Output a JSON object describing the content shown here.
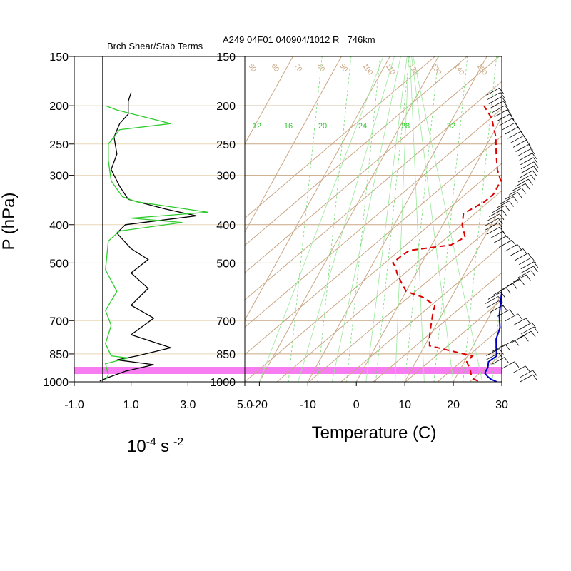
{
  "chart_data": [
    {
      "type": "line",
      "title": "Brch Shear/Stab Terms",
      "xlabel": "10^-4 s^-2",
      "xlabel_base": "10",
      "xlabel_exp": "-4",
      "xlabel_unit": "s",
      "xlabel_unit_exp": "-2",
      "ylabel": "P (hPa)",
      "y_scale": "log",
      "ylim": [
        1000,
        150
      ],
      "xlim": [
        -1.0,
        5.0
      ],
      "x_ticks": [
        "-1.0",
        "1.0",
        "3.0",
        "5.0"
      ],
      "y_ticks": [
        150,
        200,
        250,
        300,
        400,
        500,
        700,
        850,
        1000
      ],
      "series": [
        {
          "color": "#000000",
          "points": [
            [
              1.0,
              185
            ],
            [
              0.9,
              195
            ],
            [
              0.9,
              210
            ],
            [
              0.6,
              222
            ],
            [
              0.4,
              240
            ],
            [
              0.5,
              265
            ],
            [
              0.3,
              290
            ],
            [
              0.6,
              320
            ],
            [
              0.9,
              345
            ],
            [
              2.2,
              365
            ],
            [
              3.3,
              380
            ],
            [
              0.8,
              400
            ],
            [
              0.5,
              420
            ],
            [
              1.0,
              460
            ],
            [
              1.6,
              490
            ],
            [
              1.0,
              530
            ],
            [
              1.6,
              580
            ],
            [
              1.0,
              640
            ],
            [
              1.8,
              690
            ],
            [
              1.0,
              760
            ],
            [
              2.4,
              820
            ],
            [
              1.2,
              860
            ],
            [
              0.5,
              880
            ],
            [
              1.8,
              905
            ],
            [
              0.8,
              940
            ],
            [
              0.2,
              975
            ],
            [
              -0.1,
              995
            ]
          ]
        },
        {
          "color": "#2ecc2e",
          "points": [
            [
              0.1,
              200
            ],
            [
              0.5,
              205
            ],
            [
              1.3,
              212
            ],
            [
              2.4,
              222
            ],
            [
              0.6,
              230
            ],
            [
              0.2,
              250
            ],
            [
              0.2,
              275
            ],
            [
              0.3,
              310
            ],
            [
              0.7,
              340
            ],
            [
              1.2,
              350
            ],
            [
              3.7,
              372
            ],
            [
              1.0,
              385
            ],
            [
              2.8,
              395
            ],
            [
              0.6,
              415
            ],
            [
              0.2,
              440
            ],
            [
              0.1,
              520
            ],
            [
              0.5,
              590
            ],
            [
              0.1,
              660
            ],
            [
              0.3,
              720
            ],
            [
              0.1,
              800
            ],
            [
              0.3,
              860
            ],
            [
              0.9,
              870
            ],
            [
              0.1,
              900
            ],
            [
              0.2,
              960
            ],
            [
              0.1,
              990
            ]
          ]
        }
      ]
    },
    {
      "type": "line",
      "title": "A249 04F01 040904/1012 R= 746km",
      "xlabel": "Temperature (C)",
      "y_scale": "log",
      "ylim": [
        1000,
        150
      ],
      "xlim": [
        -23,
        30
      ],
      "x_ticks": [
        "-20",
        "-10",
        "0",
        "10",
        "20",
        "30"
      ],
      "y_ticks": [
        150,
        200,
        250,
        300,
        400,
        500,
        700,
        850,
        1000
      ],
      "mixing_ratio_labels": [
        "12",
        "16",
        "20",
        "24",
        "28",
        "32"
      ],
      "top_isotherm_labels": [
        "50",
        "60",
        "70",
        "80",
        "90",
        "100",
        "110",
        "120",
        "130",
        "140",
        "150"
      ],
      "series": [
        {
          "name": "Temperature",
          "color": "#0000cc",
          "style": "solid",
          "points": [
            [
              29,
              1000
            ],
            [
              27.5,
              985
            ],
            [
              26.5,
              970
            ],
            [
              25.5,
              950
            ],
            [
              25.5,
              920
            ],
            [
              25,
              890
            ],
            [
              26,
              860
            ],
            [
              25,
              820
            ],
            [
              24,
              780
            ],
            [
              23.5,
              730
            ],
            [
              22,
              680
            ],
            [
              20.5,
              620
            ],
            [
              19,
              560
            ],
            [
              17.5,
              510
            ],
            [
              16.3,
              470
            ],
            [
              15,
              440
            ],
            [
              13,
              410
            ],
            [
              11.8,
              385
            ],
            [
              12.2,
              360
            ],
            [
              11,
              335
            ],
            [
              9,
              300
            ],
            [
              7,
              265
            ],
            [
              5,
              235
            ],
            [
              3,
              205
            ],
            [
              0.5,
              182
            ]
          ]
        },
        {
          "name": "Dewpoint",
          "color": "#dd0000",
          "style": "dashed",
          "points": [
            [
              25,
              995
            ],
            [
              24,
              985
            ],
            [
              23,
              965
            ],
            [
              22.5,
              945
            ],
            [
              21.5,
              915
            ],
            [
              20.5,
              890
            ],
            [
              21,
              860
            ],
            [
              15,
              830
            ],
            [
              11,
              810
            ],
            [
              10,
              770
            ],
            [
              9,
              720
            ],
            [
              8,
              670
            ],
            [
              7.5,
              640
            ],
            [
              4,
              610
            ],
            [
              0,
              590
            ],
            [
              -2,
              560
            ],
            [
              -4,
              530
            ],
            [
              -5,
              510
            ],
            [
              -6,
              500
            ],
            [
              -5,
              480
            ],
            [
              -4,
              465
            ],
            [
              4,
              450
            ],
            [
              6,
              430
            ],
            [
              4,
              400
            ],
            [
              3,
              375
            ],
            [
              6,
              350
            ],
            [
              7,
              335
            ],
            [
              7,
              310
            ],
            [
              5,
              290
            ],
            [
              3,
              265
            ],
            [
              1,
              240
            ],
            [
              -2,
              215
            ],
            [
              -5,
              200
            ]
          ]
        }
      ]
    }
  ]
}
